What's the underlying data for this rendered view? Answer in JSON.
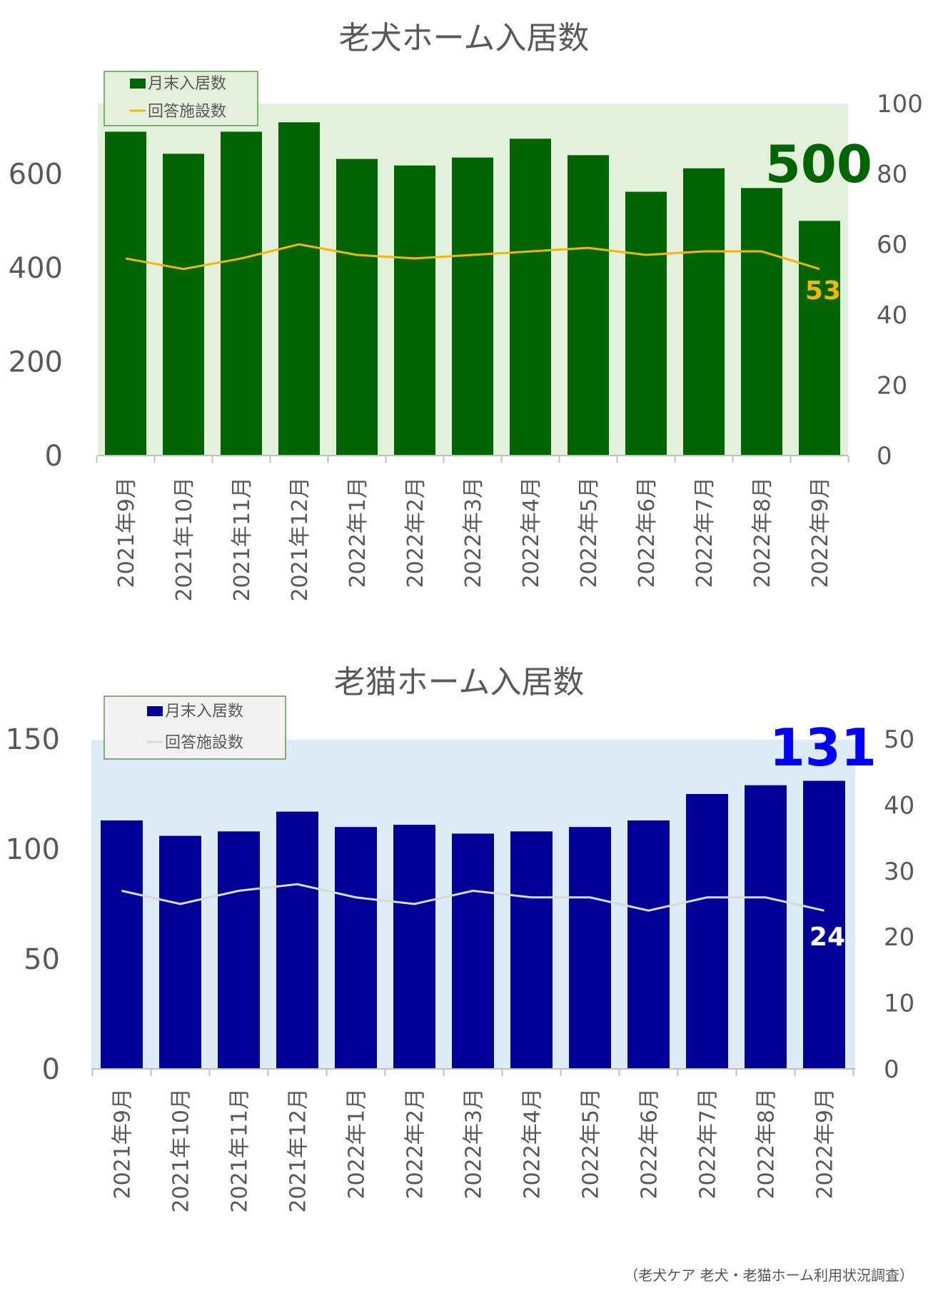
{
  "chart_data": [
    {
      "type": "bar",
      "title": "老犬ホーム入居数",
      "categories": [
        "2021年9月",
        "2021年10月",
        "2021年11月",
        "2021年12月",
        "2022年1月",
        "2022年2月",
        "2022年3月",
        "2022年4月",
        "2022年5月",
        "2022年6月",
        "2022年7月",
        "2022年8月",
        "2022年9月"
      ],
      "series": [
        {
          "name": "月末入居数",
          "axis": "left",
          "kind": "bar",
          "color": "#006400",
          "values": [
            690,
            643,
            690,
            710,
            632,
            618,
            635,
            675,
            640,
            562,
            612,
            570,
            500
          ]
        },
        {
          "name": "回答施設数",
          "axis": "right",
          "kind": "line",
          "color": "#F2B800",
          "values": [
            56,
            53,
            56,
            60,
            57,
            56,
            57,
            58,
            59,
            57,
            58,
            58,
            53
          ]
        }
      ],
      "ylim_left": [
        0,
        750
      ],
      "yticks_left": [
        0,
        200,
        400,
        600
      ],
      "ylim_right": [
        0,
        100
      ],
      "yticks_right": [
        0,
        20,
        40,
        60,
        80,
        100
      ],
      "plot_background": "#E3F1DC",
      "legend": "top-left",
      "callouts": {
        "last_bar": "500",
        "last_line": "53"
      },
      "callout_colors": {
        "last_bar": "#006400",
        "last_line": "#F2B800"
      }
    },
    {
      "type": "bar",
      "title": "老猫ホーム入居数",
      "categories": [
        "2021年9月",
        "2021年10月",
        "2021年11月",
        "2021年12月",
        "2022年1月",
        "2022年2月",
        "2022年3月",
        "2022年4月",
        "2022年5月",
        "2022年6月",
        "2022年7月",
        "2022年8月",
        "2022年9月"
      ],
      "series": [
        {
          "name": "月末入居数",
          "axis": "left",
          "kind": "bar",
          "color": "#000099",
          "values": [
            113,
            106,
            108,
            117,
            110,
            111,
            107,
            108,
            110,
            113,
            125,
            129,
            131
          ]
        },
        {
          "name": "回答施設数",
          "axis": "right",
          "kind": "line",
          "color": "#D9D9D9",
          "values": [
            27,
            25,
            27,
            28,
            26,
            25,
            27,
            26,
            26,
            24,
            26,
            26,
            24
          ]
        }
      ],
      "ylim_left": [
        0,
        150
      ],
      "yticks_left": [
        0,
        50,
        100,
        150
      ],
      "ylim_right": [
        0,
        50
      ],
      "yticks_right": [
        0,
        10,
        20,
        30,
        40,
        50
      ],
      "plot_background": "#DDEBF7",
      "legend": "top-left",
      "callouts": {
        "last_bar": "131",
        "last_line": "24"
      },
      "callout_colors": {
        "last_bar": "#0000FF",
        "last_line": "#FFFFFF"
      }
    }
  ],
  "source_note": "（老犬ケア 老犬・老猫ホーム利用状況調査）"
}
